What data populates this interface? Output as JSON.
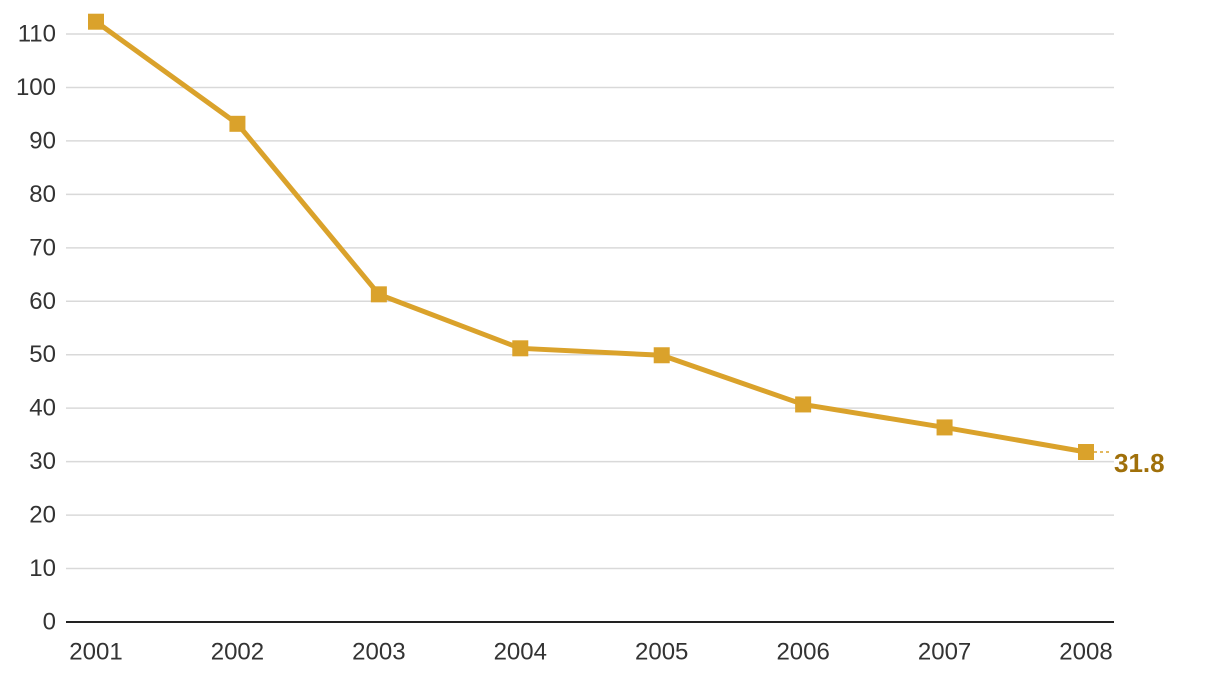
{
  "chart_data": {
    "type": "line",
    "title": "",
    "xlabel": "",
    "ylabel": "",
    "x": [
      "2001",
      "2002",
      "2003",
      "2004",
      "2005",
      "2006",
      "2007",
      "2008"
    ],
    "series": [
      {
        "values": [
          112.3,
          93.2,
          61.3,
          51.2,
          49.9,
          40.7,
          36.4,
          31.8
        ]
      }
    ],
    "ylim": [
      0,
      110
    ],
    "yticks": [
      "0",
      "10",
      "20",
      "30",
      "40",
      "50",
      "60",
      "70",
      "80",
      "90",
      "100",
      "110"
    ],
    "end_label": "31.8",
    "grid": true,
    "legend": "none",
    "marker": "square",
    "colors": {
      "series": "#DAA22B",
      "end_label": "#A0700A",
      "grid": "#d9d9d9",
      "axis": "#222222",
      "text": "#333333"
    }
  }
}
